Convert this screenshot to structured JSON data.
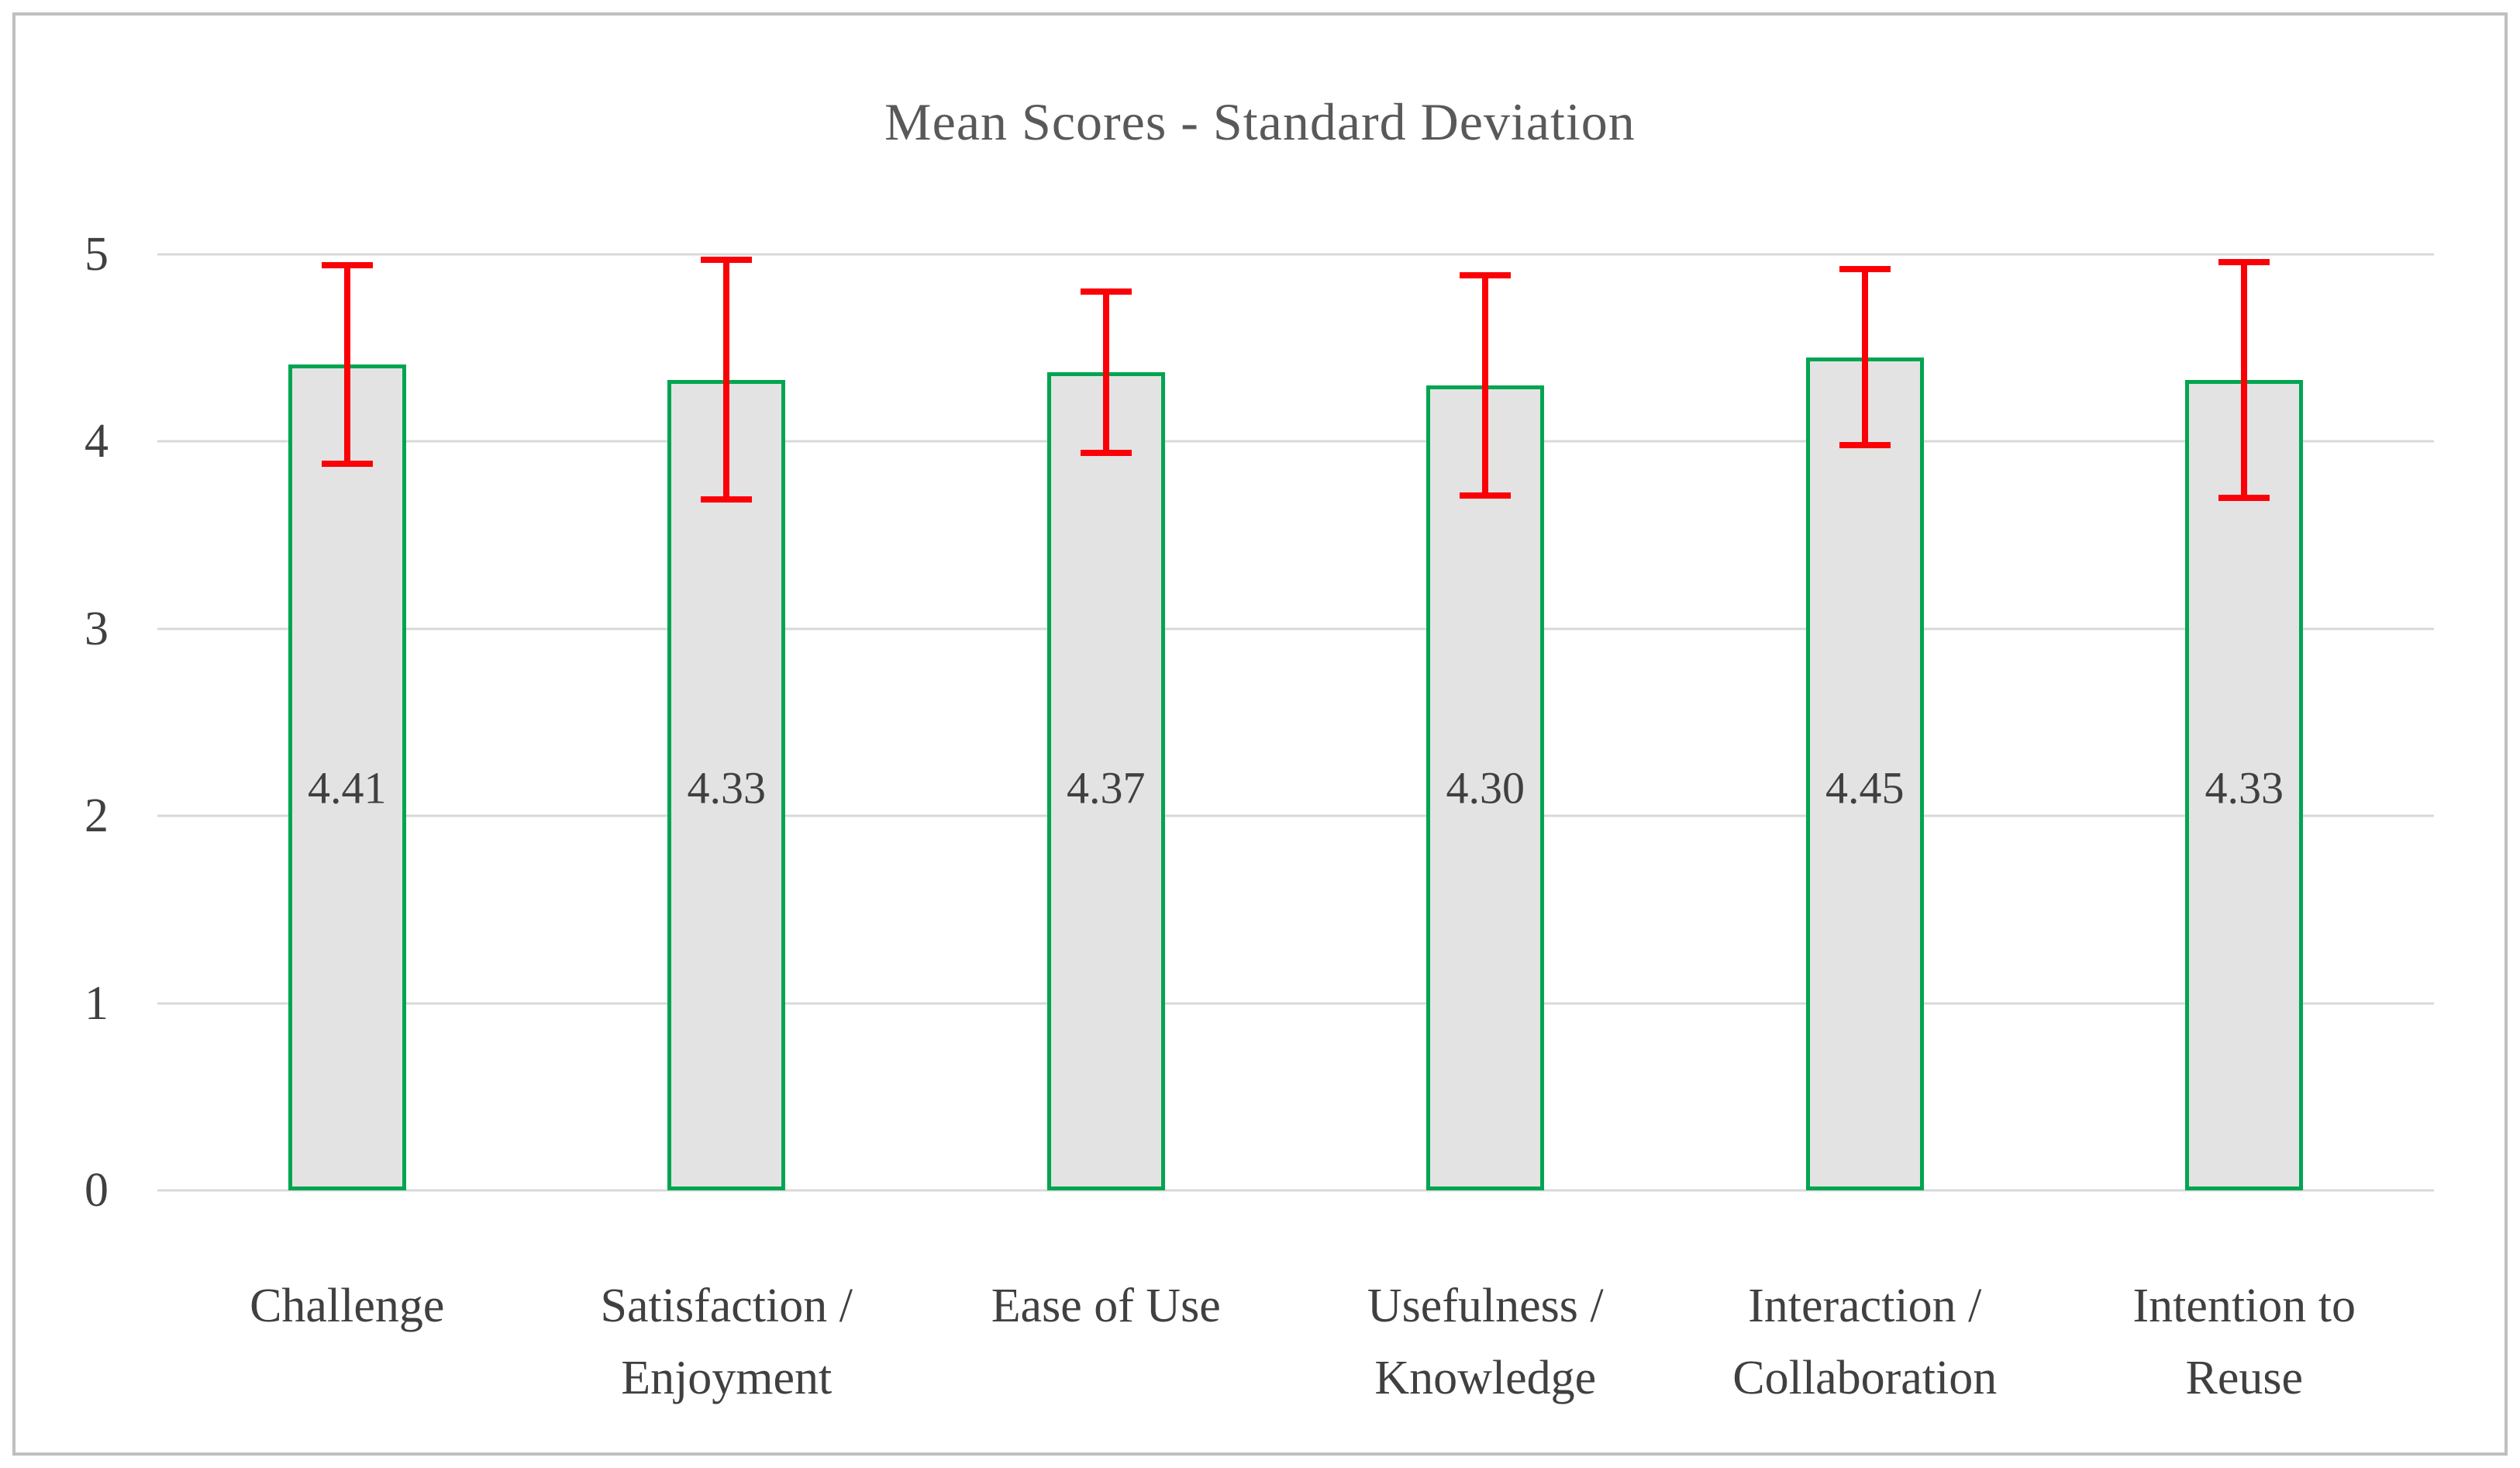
{
  "chart_data": {
    "type": "bar",
    "title": "Mean Scores - Standard Deviation",
    "categories": [
      "Challenge",
      "Satisfaction / Enjoyment",
      "Ease of Use",
      "Usefulness / Knowledge",
      "Interaction / Collaboration",
      "Intention to Reuse"
    ],
    "category_lines": [
      [
        "Challenge"
      ],
      [
        "Satisfaction /",
        "Enjoyment"
      ],
      [
        "Ease of Use"
      ],
      [
        "Usefulness /",
        "Knowledge"
      ],
      [
        "Interaction /",
        "Collaboration"
      ],
      [
        "Intention to",
        "Reuse"
      ]
    ],
    "values": [
      4.41,
      4.33,
      4.37,
      4.3,
      4.45,
      4.33
    ],
    "value_labels": [
      "4.41",
      "4.33",
      "4.37",
      "4.30",
      "4.45",
      "4.33"
    ],
    "std_dev": [
      0.53,
      0.64,
      0.43,
      0.59,
      0.47,
      0.63
    ],
    "error_bars": true,
    "ylim": [
      0,
      5
    ],
    "ytick_step": 1,
    "ytick_labels": [
      "0",
      "1",
      "2",
      "3",
      "4",
      "5"
    ],
    "xlabel": "",
    "ylabel": "",
    "grid": true,
    "legend": false,
    "colors": {
      "bar_fill": "#e3e3e3",
      "bar_border": "#00a551",
      "error_bar": "#fb0007",
      "grid_line": "#d9d9d9",
      "title_text": "#595959",
      "axis_text": "#404040",
      "frame_border": "#bfbfbf"
    }
  }
}
